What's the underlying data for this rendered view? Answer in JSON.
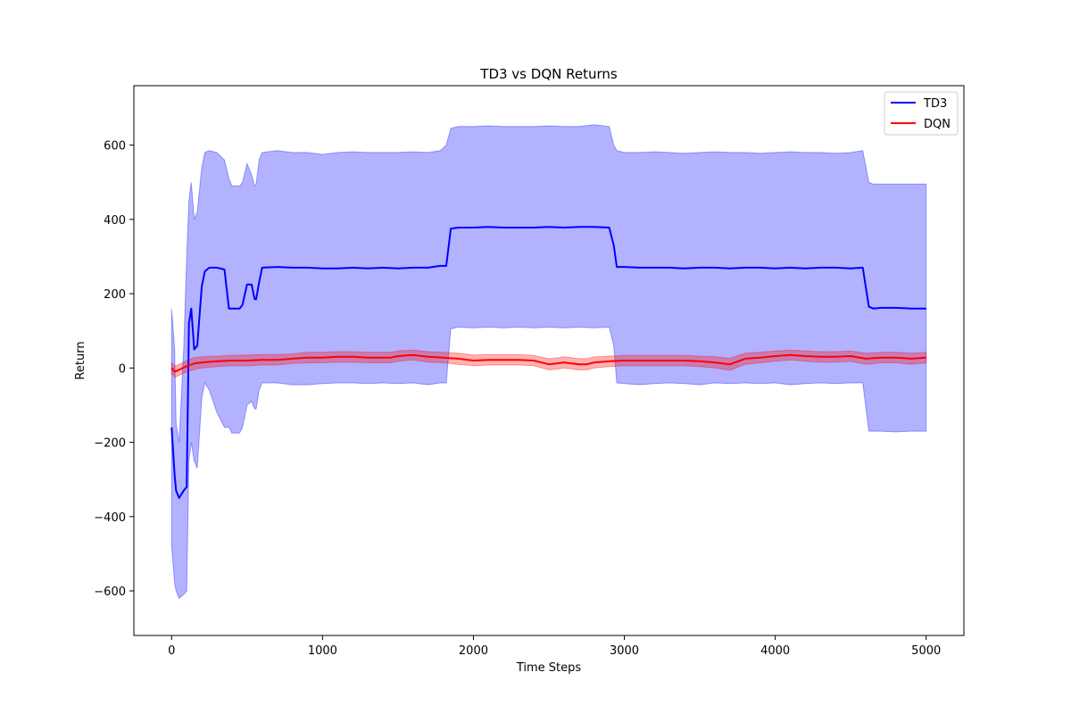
{
  "chart_data": {
    "type": "line",
    "title": "TD3 vs DQN Returns",
    "xlabel": "Time Steps",
    "ylabel": "Return",
    "xlim": [
      -250,
      5250
    ],
    "ylim": [
      -720,
      760
    ],
    "xticks": [
      0,
      1000,
      2000,
      3000,
      4000,
      5000
    ],
    "yticks": [
      -600,
      -400,
      -200,
      0,
      200,
      400,
      600
    ],
    "grid": false,
    "legend_position": "top-right",
    "series": [
      {
        "name": "TD3",
        "color": "#0000ff",
        "fill_color": "#0000ff",
        "x": [
          0,
          20,
          30,
          50,
          80,
          100,
          115,
          130,
          150,
          170,
          200,
          220,
          250,
          300,
          350,
          380,
          400,
          450,
          470,
          500,
          530,
          550,
          560,
          580,
          600,
          700,
          800,
          900,
          1000,
          1100,
          1200,
          1300,
          1400,
          1500,
          1600,
          1700,
          1780,
          1820,
          1850,
          1900,
          2000,
          2100,
          2200,
          2300,
          2400,
          2500,
          2600,
          2700,
          2800,
          2900,
          2930,
          2950,
          3000,
          3100,
          3200,
          3300,
          3400,
          3500,
          3600,
          3700,
          3800,
          3900,
          4000,
          4100,
          4200,
          4300,
          4400,
          4500,
          4580,
          4620,
          4650,
          4700,
          4800,
          4900,
          5000
        ],
        "values": [
          -160,
          -290,
          -330,
          -350,
          -330,
          -320,
          120,
          160,
          50,
          60,
          220,
          260,
          270,
          270,
          265,
          160,
          160,
          160,
          170,
          225,
          225,
          185,
          185,
          230,
          270,
          272,
          270,
          270,
          268,
          268,
          270,
          268,
          270,
          268,
          270,
          270,
          275,
          275,
          375,
          378,
          378,
          380,
          378,
          378,
          378,
          380,
          378,
          380,
          380,
          378,
          330,
          272,
          272,
          270,
          270,
          270,
          268,
          270,
          270,
          268,
          270,
          270,
          268,
          270,
          268,
          270,
          270,
          268,
          270,
          165,
          160,
          162,
          162,
          160,
          160
        ],
        "upper": [
          160,
          50,
          -150,
          -200,
          50,
          300,
          450,
          500,
          400,
          420,
          540,
          580,
          585,
          580,
          560,
          510,
          490,
          490,
          500,
          550,
          520,
          490,
          495,
          560,
          580,
          585,
          580,
          580,
          575,
          580,
          582,
          580,
          580,
          580,
          582,
          580,
          585,
          600,
          645,
          650,
          650,
          652,
          650,
          650,
          650,
          652,
          650,
          650,
          655,
          650,
          600,
          585,
          580,
          580,
          582,
          580,
          578,
          580,
          582,
          580,
          580,
          578,
          580,
          582,
          580,
          580,
          578,
          580,
          585,
          500,
          495,
          495,
          495,
          495,
          495
        ],
        "lower": [
          -480,
          -580,
          -600,
          -620,
          -610,
          -600,
          -250,
          -200,
          -250,
          -270,
          -80,
          -40,
          -60,
          -120,
          -160,
          -160,
          -175,
          -175,
          -160,
          -100,
          -90,
          -110,
          -110,
          -60,
          -40,
          -40,
          -45,
          -45,
          -42,
          -40,
          -40,
          -42,
          -40,
          -42,
          -40,
          -45,
          -40,
          -40,
          105,
          110,
          108,
          110,
          108,
          110,
          108,
          110,
          108,
          110,
          108,
          110,
          60,
          -40,
          -42,
          -45,
          -42,
          -40,
          -42,
          -45,
          -40,
          -42,
          -40,
          -42,
          -40,
          -45,
          -42,
          -40,
          -42,
          -40,
          -40,
          -170,
          -170,
          -170,
          -172,
          -170,
          -170
        ]
      },
      {
        "name": "DQN",
        "color": "#ff0000",
        "fill_color": "#ff0000",
        "x": [
          0,
          20,
          50,
          100,
          150,
          200,
          300,
          400,
          500,
          600,
          700,
          800,
          900,
          950,
          1000,
          1100,
          1200,
          1300,
          1400,
          1450,
          1500,
          1600,
          1700,
          1800,
          1900,
          2000,
          2100,
          2200,
          2300,
          2400,
          2500,
          2550,
          2600,
          2700,
          2750,
          2800,
          2900,
          3000,
          3100,
          3200,
          3300,
          3400,
          3500,
          3600,
          3700,
          3800,
          3900,
          4000,
          4100,
          4200,
          4300,
          4400,
          4500,
          4600,
          4700,
          4800,
          4900,
          5000
        ],
        "values": [
          0,
          -10,
          -5,
          5,
          12,
          15,
          18,
          20,
          20,
          22,
          22,
          25,
          28,
          28,
          28,
          30,
          30,
          28,
          28,
          28,
          32,
          35,
          30,
          28,
          25,
          20,
          22,
          22,
          22,
          20,
          10,
          12,
          15,
          10,
          10,
          15,
          18,
          20,
          20,
          20,
          20,
          20,
          18,
          15,
          10,
          25,
          28,
          32,
          35,
          32,
          30,
          30,
          32,
          25,
          28,
          28,
          25,
          28
        ],
        "upper": [
          15,
          5,
          10,
          20,
          28,
          30,
          32,
          34,
          35,
          36,
          36,
          38,
          42,
          42,
          42,
          44,
          44,
          42,
          42,
          42,
          46,
          48,
          44,
          42,
          40,
          35,
          36,
          36,
          36,
          34,
          25,
          27,
          30,
          25,
          25,
          30,
          32,
          34,
          34,
          34,
          34,
          34,
          32,
          30,
          26,
          40,
          42,
          46,
          48,
          46,
          44,
          44,
          46,
          40,
          42,
          42,
          40,
          42
        ],
        "lower": [
          -15,
          -25,
          -20,
          -10,
          -4,
          0,
          4,
          6,
          6,
          8,
          8,
          12,
          14,
          14,
          14,
          16,
          16,
          14,
          14,
          14,
          18,
          22,
          16,
          14,
          10,
          6,
          8,
          8,
          8,
          6,
          -5,
          -3,
          0,
          -5,
          -5,
          0,
          4,
          6,
          6,
          6,
          6,
          6,
          4,
          0,
          -6,
          10,
          14,
          18,
          22,
          18,
          16,
          16,
          18,
          10,
          14,
          14,
          10,
          14
        ]
      }
    ]
  }
}
